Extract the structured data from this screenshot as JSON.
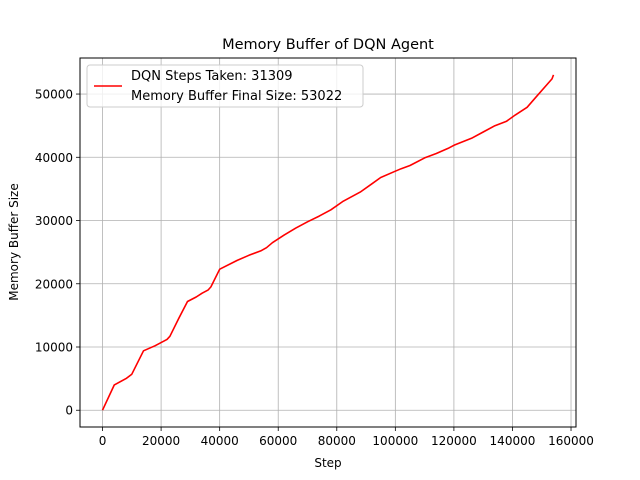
{
  "chart_data": {
    "type": "line",
    "title": "Memory Buffer of DQN Agent",
    "xlabel": "Step",
    "ylabel": "Memory Buffer Size",
    "xlim": [
      -7700,
      161700
    ],
    "ylim": [
      -2650,
      55700
    ],
    "xticks": [
      0,
      20000,
      40000,
      60000,
      80000,
      100000,
      120000,
      140000,
      160000
    ],
    "xtick_labels": [
      "0",
      "20000",
      "40000",
      "60000",
      "80000",
      "100000",
      "120000",
      "140000",
      "160000"
    ],
    "yticks": [
      0,
      10000,
      20000,
      30000,
      40000,
      50000
    ],
    "ytick_labels": [
      "0",
      "10000",
      "20000",
      "30000",
      "40000",
      "50000"
    ],
    "grid": true,
    "legend": {
      "placement": "upper-left",
      "lines": [
        "DQN Steps Taken: 31309",
        "Memory Buffer Final Size: 53022"
      ]
    },
    "series": [
      {
        "color": "#ff0000",
        "x": [
          0,
          4000,
          8000,
          10000,
          14000,
          18000,
          20000,
          22000,
          23000,
          26000,
          29000,
          32000,
          34000,
          36000,
          37000,
          40000,
          46000,
          50000,
          54000,
          56000,
          58000,
          62000,
          66000,
          70000,
          74000,
          78000,
          82000,
          88000,
          92000,
          95000,
          100000,
          102000,
          105000,
          110000,
          114000,
          118000,
          120000,
          126000,
          130000,
          134000,
          138000,
          141000,
          145000,
          148000,
          152000,
          153500,
          154000
        ],
        "y": [
          0,
          4000,
          5000,
          5700,
          9400,
          10200,
          10700,
          11200,
          11700,
          14500,
          17200,
          17900,
          18500,
          19000,
          19500,
          22300,
          23700,
          24500,
          25200,
          25700,
          26500,
          27700,
          28800,
          29800,
          30700,
          31700,
          33000,
          34500,
          35800,
          36800,
          37800,
          38200,
          38700,
          39900,
          40600,
          41400,
          41900,
          43000,
          44000,
          45000,
          45700,
          46700,
          47900,
          49500,
          51600,
          52400,
          53022
        ]
      }
    ]
  }
}
